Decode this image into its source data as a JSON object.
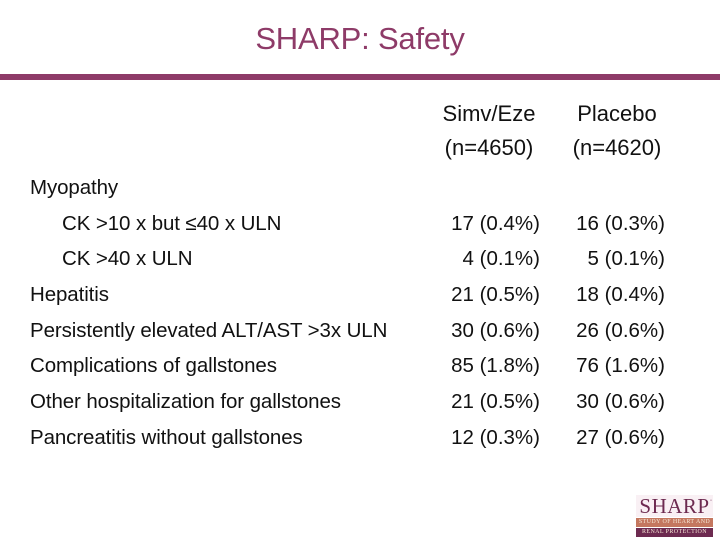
{
  "slide": {
    "title": "SHARP: Safety"
  },
  "table": {
    "col_headers": [
      {
        "name": "Simv/Eze",
        "n": "(n=4650)"
      },
      {
        "name": "Placebo",
        "n": "(n=4620)"
      }
    ],
    "rows": [
      {
        "label": "Myopathy",
        "indent": false,
        "simv_eze": "",
        "placebo": ""
      },
      {
        "label": "CK >10 x but ≤40 x ULN",
        "indent": true,
        "simv_eze": "17 (0.4%)",
        "placebo": "16 (0.3%)"
      },
      {
        "label": "CK >40 x ULN",
        "indent": true,
        "simv_eze": "4 (0.1%)",
        "placebo": "5 (0.1%)"
      },
      {
        "label": "Hepatitis",
        "indent": false,
        "simv_eze": "21 (0.5%)",
        "placebo": "18 (0.4%)"
      },
      {
        "label": "Persistently elevated ALT/AST >3x ULN",
        "indent": false,
        "simv_eze": "30 (0.6%)",
        "placebo": "26 (0.6%)"
      },
      {
        "label": "Complications of gallstones",
        "indent": false,
        "simv_eze": "85 (1.8%)",
        "placebo": "76 (1.6%)"
      },
      {
        "label": "Other hospitalization for gallstones",
        "indent": false,
        "simv_eze": "21 (0.5%)",
        "placebo": "30 (0.6%)"
      },
      {
        "label": "Pancreatitis without gallstones",
        "indent": false,
        "simv_eze": "12 (0.3%)",
        "placebo": "27 (0.6%)"
      }
    ]
  },
  "logo": {
    "wordmark": "SHARP",
    "band1": "STUDY OF HEART AND",
    "band2": "RENAL PROTECTION"
  },
  "colors": {
    "accent": "#8e3b68",
    "logo_maroon": "#6d2a50",
    "logo_salmon": "#c4775f",
    "text": "#111111"
  }
}
